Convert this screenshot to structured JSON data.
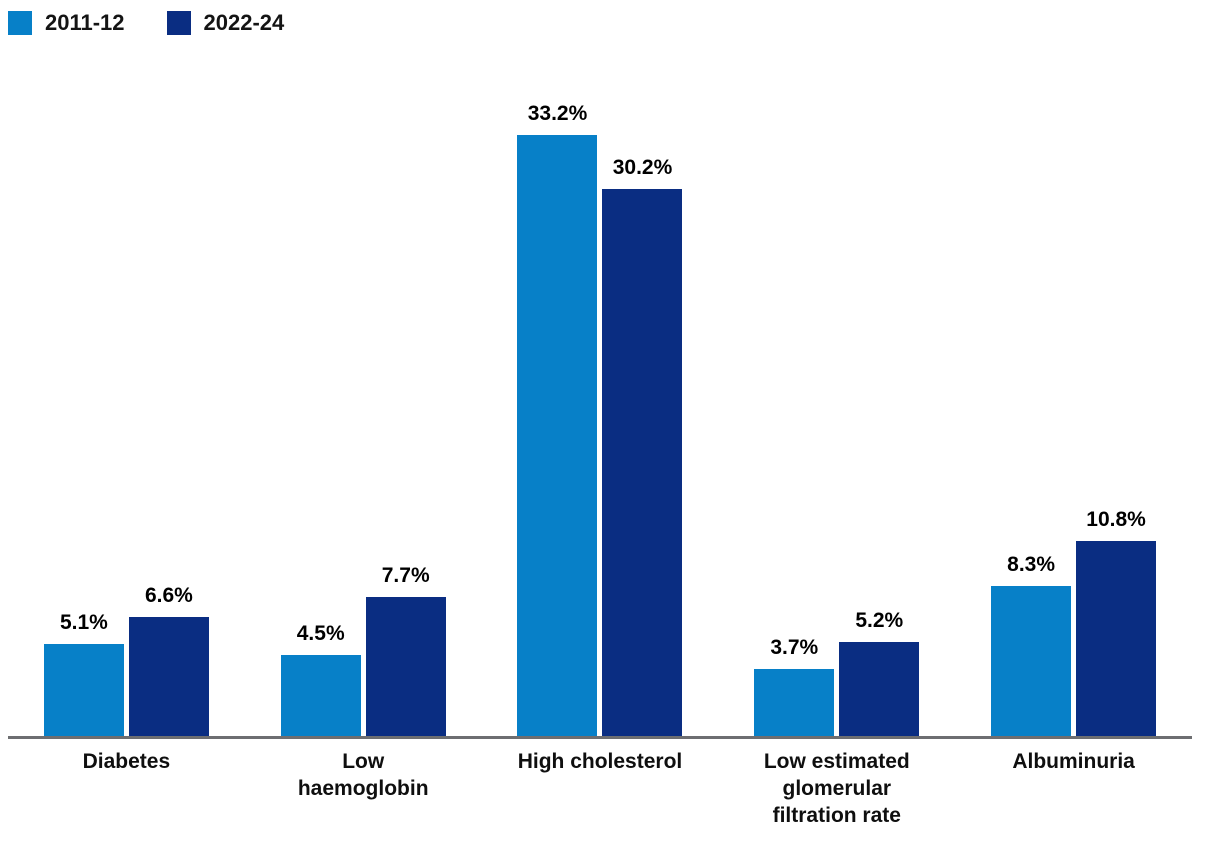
{
  "legend": {
    "items": [
      {
        "label": "2011-12",
        "color": "#0780C8"
      },
      {
        "label": "2022-24",
        "color": "#0A2D82"
      }
    ]
  },
  "chart_data": {
    "type": "bar",
    "title": "",
    "xlabel": "",
    "ylabel": "",
    "categories": [
      "Diabetes",
      "Low haemoglobin",
      "High cholesterol",
      "Low estimated glomerular filtration rate",
      "Albuminuria"
    ],
    "series": [
      {
        "name": "2011-12",
        "color": "#0780C8",
        "values": [
          5.1,
          4.5,
          33.2,
          3.7,
          8.3
        ],
        "labels": [
          "5.1%",
          "4.5%",
          "33.2%",
          "3.7%",
          "8.3%"
        ]
      },
      {
        "name": "2022-24",
        "color": "#0A2D82",
        "values": [
          6.6,
          7.7,
          30.2,
          5.2,
          10.8
        ],
        "labels": [
          "6.6%",
          "7.7%",
          "30.2%",
          "5.2%",
          "10.8%"
        ]
      }
    ],
    "value_suffix": "%",
    "ylim": [
      0,
      36
    ],
    "grid": false,
    "y_axis_visible": false,
    "x_axis_line_color": "#6D6E71",
    "legend_position": "top-left",
    "data_labels": "above-bars"
  }
}
